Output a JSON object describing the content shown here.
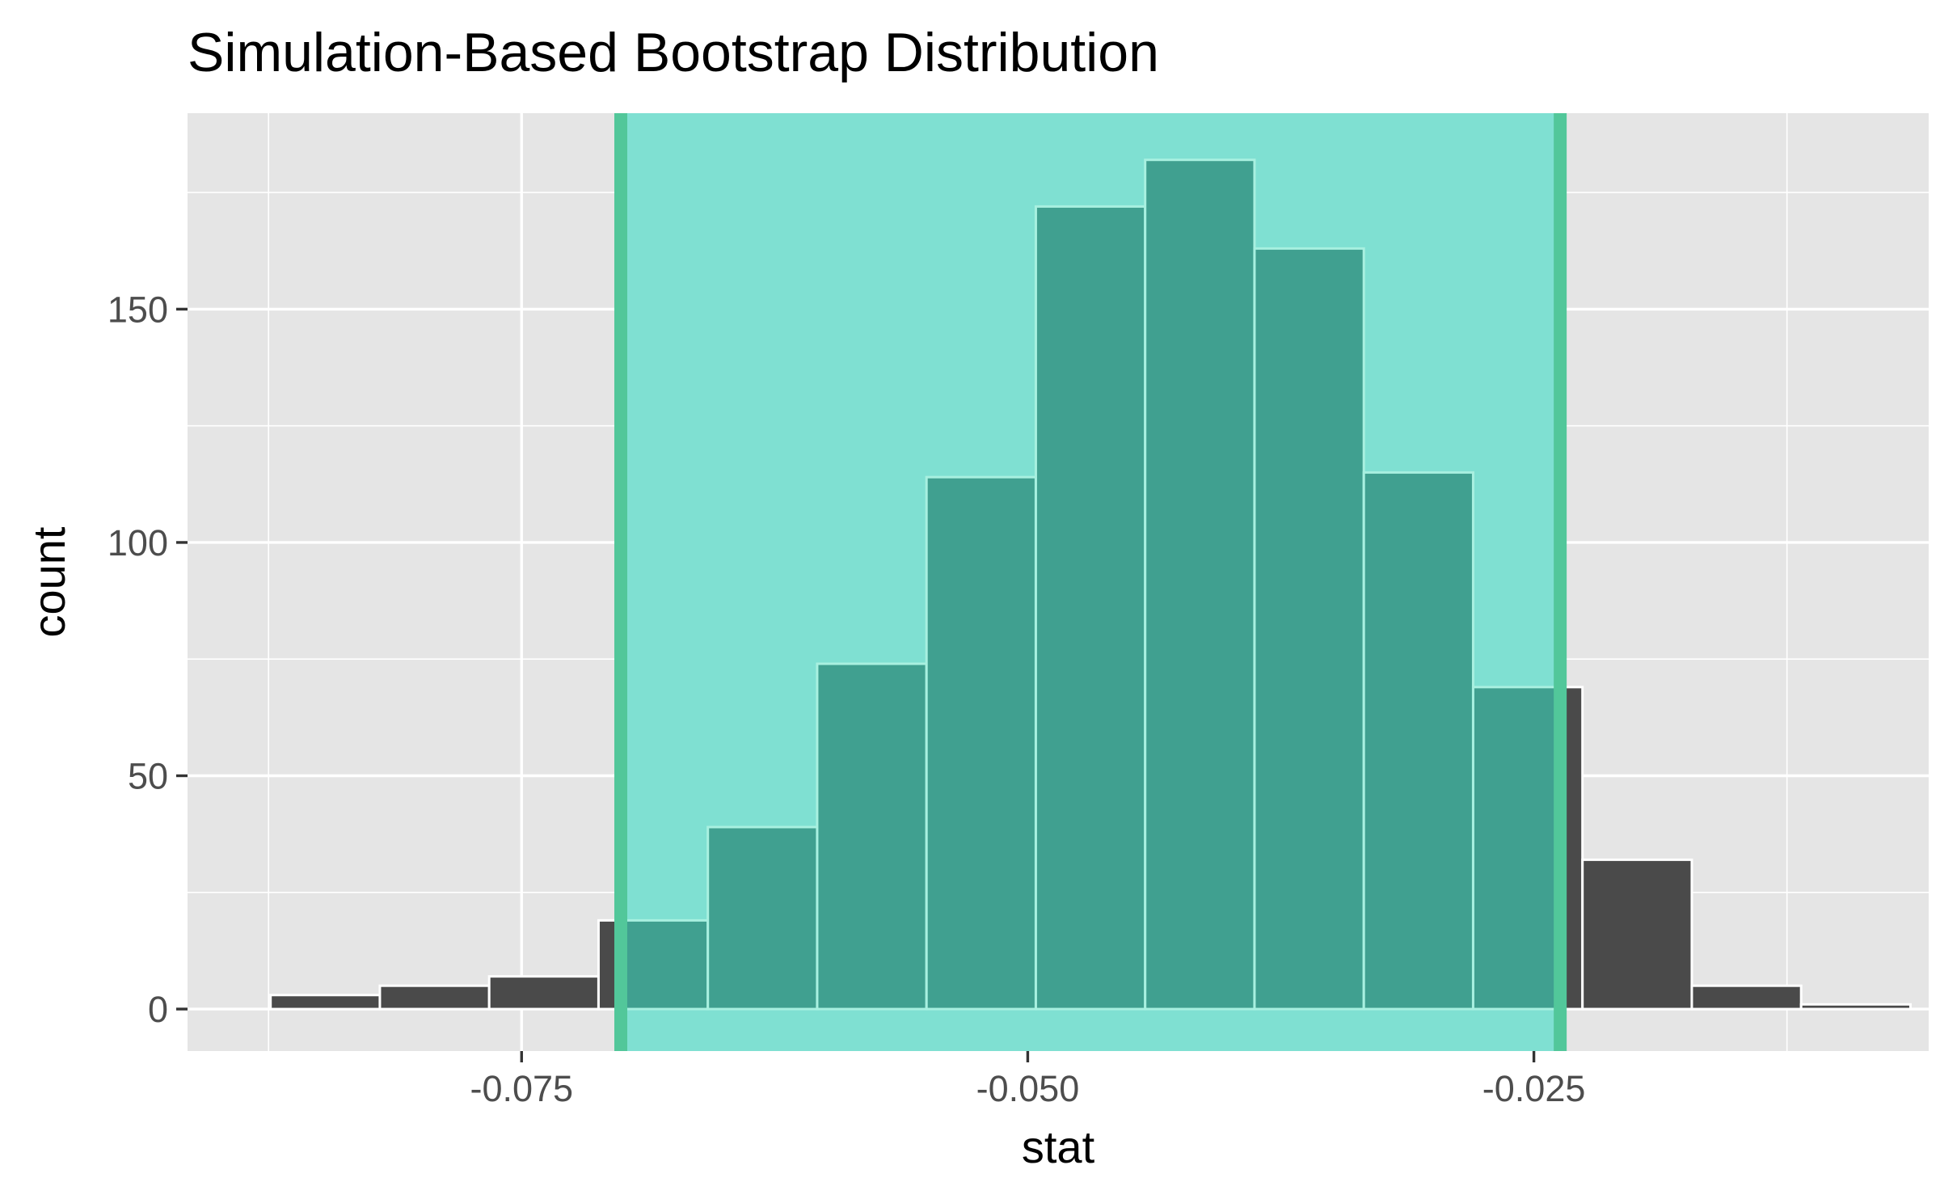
{
  "chart_data": {
    "type": "bar",
    "subtype": "histogram",
    "title": "Simulation-Based Bootstrap Distribution",
    "xlabel": "stat",
    "ylabel": "count",
    "xlim": [
      -0.0915,
      -0.0055
    ],
    "ylim": [
      -9,
      192
    ],
    "x_ticks": [
      -0.075,
      -0.05,
      -0.025
    ],
    "x_tick_labels": [
      "-0.075",
      "-0.050",
      "-0.025"
    ],
    "y_ticks": [
      0,
      50,
      100,
      150
    ],
    "y_tick_labels": [
      "0",
      "50",
      "100",
      "150"
    ],
    "grid": true,
    "legend": "none",
    "bin_width": 0.0054,
    "bins": [
      {
        "x_start": -0.0874,
        "x_end": -0.082,
        "count": 3
      },
      {
        "x_start": -0.082,
        "x_end": -0.0766,
        "count": 5
      },
      {
        "x_start": -0.0766,
        "x_end": -0.0712,
        "count": 7
      },
      {
        "x_start": -0.0712,
        "x_end": -0.0658,
        "count": 19
      },
      {
        "x_start": -0.0658,
        "x_end": -0.0604,
        "count": 39
      },
      {
        "x_start": -0.0604,
        "x_end": -0.055,
        "count": 74
      },
      {
        "x_start": -0.055,
        "x_end": -0.0496,
        "count": 114
      },
      {
        "x_start": -0.0496,
        "x_end": -0.0442,
        "count": 172
      },
      {
        "x_start": -0.0442,
        "x_end": -0.0388,
        "count": 182
      },
      {
        "x_start": -0.0388,
        "x_end": -0.0334,
        "count": 163
      },
      {
        "x_start": -0.0334,
        "x_end": -0.028,
        "count": 115
      },
      {
        "x_start": -0.028,
        "x_end": -0.0226,
        "count": 69
      },
      {
        "x_start": -0.0226,
        "x_end": -0.0172,
        "count": 32
      },
      {
        "x_start": -0.0172,
        "x_end": -0.0118,
        "count": 5
      },
      {
        "x_start": -0.0118,
        "x_end": -0.0064,
        "count": 1
      }
    ],
    "confidence_interval": {
      "lower": -0.0701,
      "upper": -0.0237
    },
    "colors": {
      "panel_background": "#e5e5e5",
      "gridline": "#ffffff",
      "bar_fill": "#4a4a4a",
      "bar_outline": "#ffffff",
      "ci_fill": "#7fe0d2",
      "ci_line": "#52c79a",
      "bar_in_ci_fill": "#40a090",
      "bar_in_ci_outline": "#a8f0e0"
    }
  }
}
